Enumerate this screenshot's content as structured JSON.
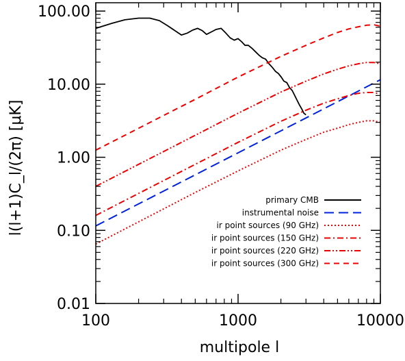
{
  "chart_data": {
    "type": "line",
    "xlabel": "multipole l",
    "ylabel": "l(l+1)C_l/(2π) [μK]",
    "xscale": "log",
    "yscale": "log",
    "xlim": [
      100,
      10000
    ],
    "ylim": [
      0.01,
      130
    ],
    "x_ticks": [
      {
        "value": 100,
        "label": "100"
      },
      {
        "value": 1000,
        "label": "1000"
      },
      {
        "value": 10000,
        "label": "10000"
      }
    ],
    "y_ticks": [
      {
        "value": 0.01,
        "label": "0.01"
      },
      {
        "value": 0.1,
        "label": "0.10"
      },
      {
        "value": 1,
        "label": "1.00"
      },
      {
        "value": 10,
        "label": "10.00"
      },
      {
        "value": 100,
        "label": "100.00"
      }
    ],
    "legend_position": "bottom-right",
    "series": [
      {
        "name": "primary CMB",
        "color": "#000000",
        "dash": "solid",
        "x": [
          100,
          130,
          160,
          200,
          240,
          280,
          320,
          360,
          400,
          440,
          480,
          520,
          560,
          600,
          650,
          700,
          760,
          820,
          880,
          940,
          1000,
          1060,
          1120,
          1180,
          1250,
          1320,
          1400,
          1480,
          1560,
          1650,
          1740,
          1830,
          1920,
          2010,
          2100,
          2200,
          2300,
          2400,
          2500,
          2600,
          2700,
          2800,
          2900,
          3000
        ],
        "y": [
          58,
          68,
          76,
          80,
          80,
          74,
          63,
          54,
          47,
          50,
          55,
          58,
          54,
          48,
          52,
          56,
          58,
          50,
          43,
          40,
          42,
          38,
          34,
          34,
          31,
          28,
          25,
          23,
          22,
          19,
          17,
          15,
          14,
          12.5,
          11,
          10.5,
          9,
          8.2,
          7,
          6,
          5.2,
          4.6,
          4.0,
          3.8
        ]
      },
      {
        "name": "instrumental noise",
        "color": "#0022dd",
        "dash": "long-dash",
        "x": [
          100,
          1000,
          10000
        ],
        "y": [
          0.115,
          1.15,
          11.5
        ]
      },
      {
        "name": "ir point sources (90 GHz)",
        "color": "#ee0000",
        "dash": "dotted",
        "x": [
          100,
          500,
          1000,
          2000,
          3000,
          4000,
          5000,
          6000,
          7000,
          8000,
          9000,
          10000
        ],
        "y": [
          0.065,
          0.33,
          0.65,
          1.25,
          1.75,
          2.2,
          2.5,
          2.8,
          3.0,
          3.15,
          3.15,
          3.0
        ]
      },
      {
        "name": "ir point sources (150 GHz)",
        "color": "#ee0000",
        "dash": "dash-dot",
        "x": [
          100,
          500,
          1000,
          2000,
          3000,
          4000,
          5000,
          6000,
          7000,
          8000,
          9000,
          10000
        ],
        "y": [
          0.16,
          0.8,
          1.6,
          3.1,
          4.4,
          5.5,
          6.3,
          7.0,
          7.5,
          7.7,
          7.7,
          7.3
        ]
      },
      {
        "name": "ir point sources (220 GHz)",
        "color": "#ee0000",
        "dash": "dash-dot-dot",
        "x": [
          100,
          500,
          1000,
          2000,
          3000,
          4000,
          5000,
          6000,
          7000,
          8000,
          9000,
          10000
        ],
        "y": [
          0.4,
          2.0,
          4.0,
          7.8,
          11,
          13.8,
          16,
          17.8,
          19,
          19.8,
          19.8,
          19
        ]
      },
      {
        "name": "ir point sources (300 GHz)",
        "color": "#ee0000",
        "dash": "dashed",
        "x": [
          100,
          500,
          1000,
          2000,
          3000,
          4000,
          5000,
          6000,
          7000,
          8000,
          9000,
          10000
        ],
        "y": [
          1.25,
          6.2,
          12.5,
          24,
          34,
          43,
          51,
          57,
          61,
          64,
          65,
          62
        ]
      }
    ]
  }
}
